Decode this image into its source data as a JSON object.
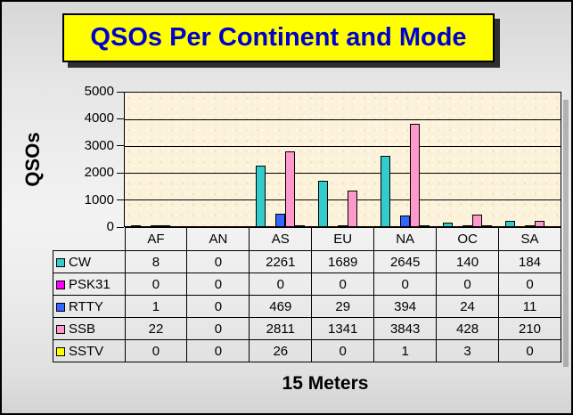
{
  "chart_data": {
    "type": "bar",
    "title": "QSOs Per Continent and Mode",
    "xlabel": "15 Meters",
    "ylabel": "QSOs",
    "categories": [
      "AF",
      "AN",
      "AS",
      "EU",
      "NA",
      "OC",
      "SA"
    ],
    "series": [
      {
        "name": "CW",
        "color": "#33CCCC",
        "values": [
          8,
          0,
          2261,
          1689,
          2645,
          140,
          184
        ]
      },
      {
        "name": "PSK31",
        "color": "#FF00FF",
        "values": [
          0,
          0,
          0,
          0,
          0,
          0,
          0
        ]
      },
      {
        "name": "RTTY",
        "color": "#3366FF",
        "values": [
          1,
          0,
          469,
          29,
          394,
          24,
          11
        ]
      },
      {
        "name": "SSB",
        "color": "#FF99CC",
        "values": [
          22,
          0,
          2811,
          1341,
          3843,
          428,
          210
        ]
      },
      {
        "name": "SSTV",
        "color": "#FFFF00",
        "values": [
          0,
          0,
          26,
          0,
          1,
          3,
          0
        ]
      }
    ],
    "ylim": [
      0,
      5000
    ],
    "yticks": [
      0,
      1000,
      2000,
      3000,
      4000,
      5000
    ],
    "grid": true,
    "legend_position": "left column of data table below chart"
  },
  "colors": {
    "title_bg": "#FFFF00",
    "title_text": "#0000CC",
    "title_shadow": "#2E2E2E",
    "plot_bg": "#FBF2D9",
    "axis": "#000000"
  }
}
